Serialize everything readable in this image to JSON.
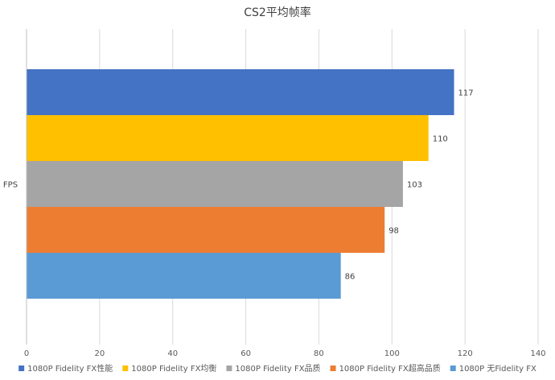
{
  "chart_data": {
    "type": "bar",
    "orientation": "horizontal",
    "title": "CS2平均帧率",
    "categories": [
      "FPS"
    ],
    "series": [
      {
        "name": "1080P Fidelity FX性能",
        "values": [
          117
        ],
        "color": "#4472C4"
      },
      {
        "name": "1080P Fidelity FX均衡",
        "values": [
          110
        ],
        "color": "#FFC000"
      },
      {
        "name": "1080P Fidelity FX品质",
        "values": [
          103
        ],
        "color": "#A5A5A5"
      },
      {
        "name": "1080P Fidelity FX超高品质",
        "values": [
          98
        ],
        "color": "#ED7D31"
      },
      {
        "name": "1080P 无Fidelity FX",
        "values": [
          86
        ],
        "color": "#5B9BD5"
      }
    ],
    "xlim": [
      0,
      140
    ],
    "xticks": [
      0,
      20,
      40,
      60,
      80,
      100,
      120,
      140
    ],
    "grid": true,
    "legend_position": "bottom",
    "data_labels": true
  }
}
